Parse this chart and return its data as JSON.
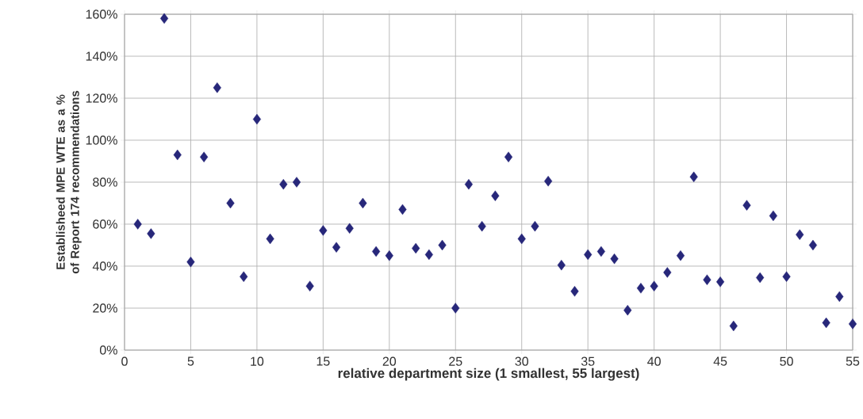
{
  "chart_data": {
    "type": "scatter",
    "xlabel": "relative department size (1 smallest, 55 largest)",
    "ylabel": "Establisheed MPE WTE as a % of Report 174 recommendations",
    "x": [
      1,
      2,
      3,
      4,
      5,
      6,
      7,
      8,
      9,
      10,
      11,
      12,
      13,
      14,
      15,
      16,
      17,
      18,
      19,
      20,
      21,
      22,
      23,
      24,
      25,
      26,
      27,
      28,
      29,
      30,
      31,
      32,
      33,
      34,
      35,
      36,
      37,
      38,
      39,
      40,
      41,
      42,
      43,
      44,
      45,
      46,
      47,
      48,
      49,
      50,
      51,
      52,
      53,
      54,
      55
    ],
    "values": [
      60,
      55.5,
      158,
      93,
      42,
      92,
      125,
      70,
      35,
      110,
      53,
      79,
      80,
      30.5,
      57,
      49,
      58,
      70,
      47,
      45,
      67,
      48.5,
      45.5,
      50,
      20,
      79,
      59,
      73.5,
      92,
      53,
      59,
      80.5,
      40.5,
      28,
      45.5,
      47,
      43.5,
      19,
      29.5,
      30.5,
      37,
      45,
      82.5,
      33.5,
      32.5,
      11.5,
      69,
      34.5,
      64,
      35,
      55,
      50,
      13,
      25.5,
      12.5
    ],
    "color": "#27277a",
    "marker": "diamond",
    "xlim": [
      0,
      55
    ],
    "xticks": [
      0,
      5,
      10,
      15,
      20,
      25,
      30,
      35,
      40,
      45,
      50,
      55
    ],
    "ylim": [
      0,
      160
    ],
    "yticks": [
      {
        "value": 0,
        "label": "0%"
      },
      {
        "value": 20,
        "label": "20%"
      },
      {
        "value": 40,
        "label": "40%"
      },
      {
        "value": 60,
        "label": "60%"
      },
      {
        "value": 80,
        "label": "80%"
      },
      {
        "value": 100,
        "label": "100%"
      },
      {
        "value": 120,
        "label": "120%"
      },
      {
        "value": 140,
        "label": "140%"
      },
      {
        "value": 160,
        "label": "160%"
      }
    ],
    "grid": true
  }
}
